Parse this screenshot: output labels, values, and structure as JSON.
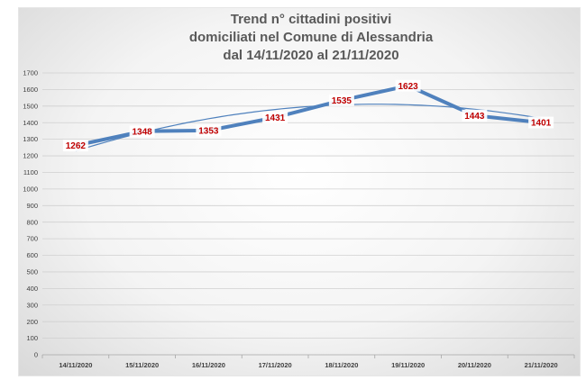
{
  "chart_data": {
    "type": "line",
    "title_lines": [
      "Trend n° cittadini positivi",
      "domiciliati nel Comune di Alessandria",
      "dal 14/11/2020 al 21/11/2020"
    ],
    "categories": [
      "14/11/2020",
      "15/11/2020",
      "16/11/2020",
      "17/11/2020",
      "18/11/2020",
      "19/11/2020",
      "20/11/2020",
      "21/11/2020"
    ],
    "series": [
      {
        "values": [
          1262,
          1348,
          1353,
          1431,
          1535,
          1623,
          1443,
          1401
        ],
        "color": "#4f81bd"
      }
    ],
    "trendline": {
      "type": "polynomial",
      "color": "#4f81bd"
    },
    "ylim": [
      0,
      1700
    ],
    "ytick_step": 100,
    "grid": true,
    "data_label_color": "#c00000"
  }
}
